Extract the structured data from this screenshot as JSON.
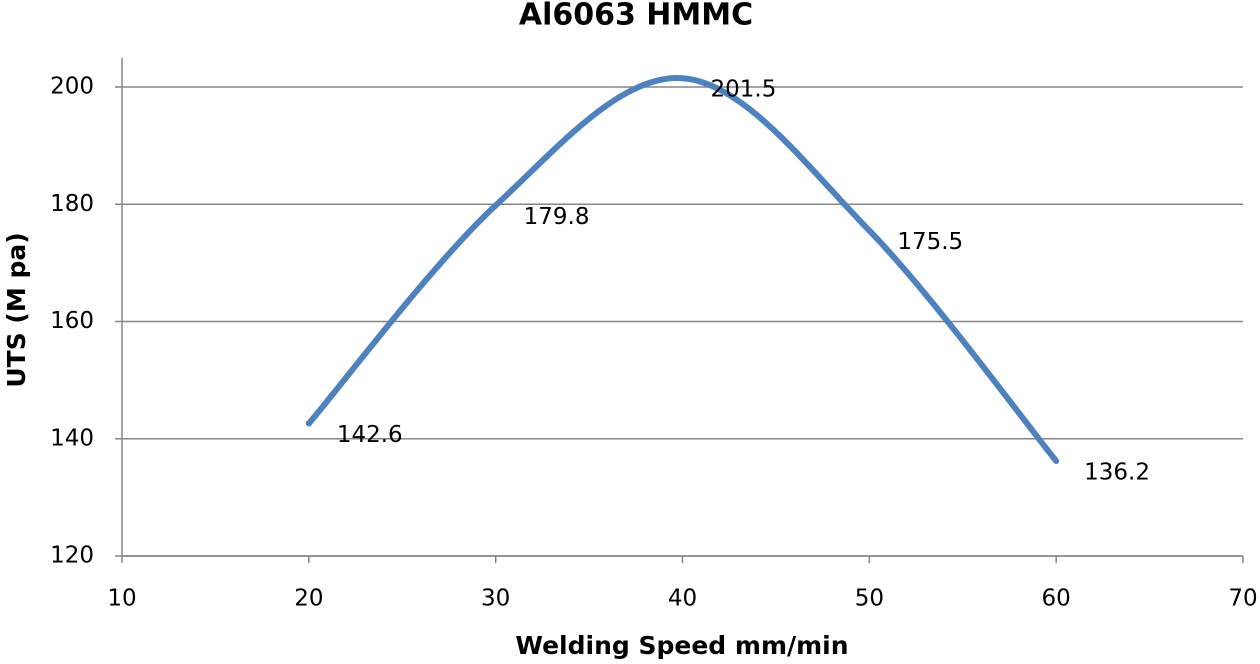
{
  "chart_data": {
    "type": "line",
    "title": "Al6063 HMMC",
    "x_label": "Welding Speed mm/min",
    "y_label": "UTS (M pa)",
    "x": [
      20,
      30,
      40,
      50,
      60
    ],
    "series": [
      {
        "name": "UTS",
        "color": "#4f81bd",
        "values": [
          142.6,
          179.8,
          201.5,
          175.5,
          136.2
        ]
      }
    ],
    "xlim": [
      10,
      70
    ],
    "xticks": [
      10,
      20,
      30,
      40,
      50,
      60,
      70
    ],
    "ylim": [
      120,
      205
    ],
    "yticks": [
      120,
      140,
      160,
      180,
      200
    ],
    "grid": true,
    "smooth": true
  }
}
